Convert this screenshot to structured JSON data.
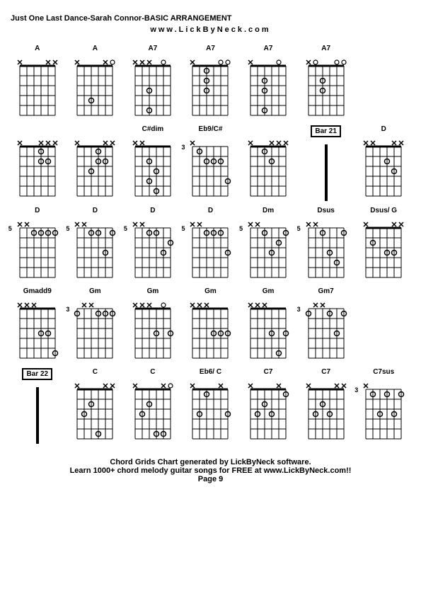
{
  "title": "Just One Last Dance-Sarah Connor-BASIC ARRANGEMENT",
  "subtitle": "www.LickByNeck.com",
  "footer_line1": "Chord Grids Chart generated by LickByNeck software.",
  "footer_line2": "Learn 1000+ chord melody guitar songs for FREE at www.LickByNeck.com!!",
  "page_label": "Page 9",
  "colors": {
    "background": "#ffffff",
    "line": "#000000",
    "text": "#000000"
  },
  "diagram": {
    "strings": 6,
    "frets": 5,
    "width": 50,
    "height": 70,
    "string_spacing": 10,
    "fret_spacing": 14,
    "dot_radius": 3.5,
    "open_radius": 3
  },
  "rows": [
    [
      {
        "label": "A",
        "fret_offset": "",
        "markers": [
          "x",
          "",
          "",
          "",
          "x",
          "x"
        ],
        "dots": []
      },
      {
        "label": "A",
        "fret_offset": "",
        "markers": [
          "x",
          "",
          "",
          "",
          "x",
          "o"
        ],
        "dots": [
          [
            4,
            2
          ]
        ]
      },
      {
        "label": "A7",
        "fret_offset": "",
        "markers": [
          "x",
          "x",
          "x",
          "",
          "o",
          ""
        ],
        "dots": [
          [
            3,
            2
          ],
          [
            5,
            2
          ]
        ]
      },
      {
        "label": "A7",
        "fret_offset": "",
        "markers": [
          "x",
          "",
          "",
          "",
          "o",
          "o"
        ],
        "dots": [
          [
            1,
            2
          ],
          [
            2,
            2
          ],
          [
            3,
            2
          ]
        ]
      },
      {
        "label": "A7",
        "fret_offset": "",
        "markers": [
          "x",
          "",
          "",
          "",
          "o",
          ""
        ],
        "dots": [
          [
            2,
            2
          ],
          [
            3,
            2
          ],
          [
            5,
            2
          ]
        ]
      },
      {
        "label": "A7",
        "fret_offset": "",
        "markers": [
          "x",
          "o",
          "",
          "",
          "o",
          "o"
        ],
        "dots": [
          [
            2,
            2
          ],
          [
            3,
            2
          ]
        ]
      },
      {
        "label": "",
        "type": "empty"
      }
    ],
    [
      {
        "label": "",
        "fret_offset": "",
        "markers": [
          "x",
          "",
          "",
          "x",
          "x",
          "x"
        ],
        "dots": [
          [
            1,
            3
          ],
          [
            2,
            4
          ],
          [
            2,
            3
          ]
        ]
      },
      {
        "label": "",
        "fret_offset": "",
        "markers": [
          "x",
          "",
          "",
          "",
          "x",
          "x"
        ],
        "dots": [
          [
            1,
            3
          ],
          [
            2,
            4
          ],
          [
            2,
            3
          ],
          [
            3,
            2
          ]
        ]
      },
      {
        "label": "C#dim",
        "fret_offset": "",
        "markers": [
          "x",
          "x",
          "",
          "",
          "",
          ""
        ],
        "dots": [
          [
            2,
            2
          ],
          [
            3,
            3
          ],
          [
            4,
            2
          ],
          [
            5,
            3
          ]
        ]
      },
      {
        "label": "Eb9/C#",
        "fret_offset": "3",
        "markers": [
          "x",
          "",
          "",
          "",
          "",
          ""
        ],
        "dots": [
          [
            1,
            1
          ],
          [
            2,
            2
          ],
          [
            2,
            3
          ],
          [
            2,
            4
          ],
          [
            4,
            5
          ]
        ]
      },
      {
        "label": "",
        "fret_offset": "",
        "markers": [
          "x",
          "",
          "",
          "x",
          "x",
          "x"
        ],
        "dots": [
          [
            1,
            2
          ],
          [
            2,
            3
          ]
        ]
      },
      {
        "label": "Bar 21",
        "type": "bar"
      },
      {
        "label": "D",
        "fret_offset": "",
        "markers": [
          "x",
          "x",
          "",
          "",
          "x",
          "x"
        ],
        "dots": [
          [
            2,
            3
          ],
          [
            3,
            4
          ]
        ]
      }
    ],
    [
      {
        "label": "D",
        "fret_offset": "5",
        "markers": [
          "x",
          "x",
          "",
          "",
          "",
          ""
        ],
        "dots": [
          [
            1,
            2
          ],
          [
            1,
            3
          ],
          [
            1,
            4
          ],
          [
            1,
            5
          ]
        ]
      },
      {
        "label": "D",
        "fret_offset": "5",
        "markers": [
          "x",
          "x",
          "",
          "",
          "",
          ""
        ],
        "dots": [
          [
            1,
            2
          ],
          [
            1,
            3
          ],
          [
            3,
            4
          ],
          [
            1,
            5
          ]
        ]
      },
      {
        "label": "D",
        "fret_offset": "5",
        "markers": [
          "x",
          "x",
          "",
          "",
          "",
          ""
        ],
        "dots": [
          [
            1,
            2
          ],
          [
            1,
            3
          ],
          [
            3,
            4
          ],
          [
            2,
            5
          ]
        ]
      },
      {
        "label": "D",
        "fret_offset": "5",
        "markers": [
          "x",
          "x",
          "",
          "",
          "",
          ""
        ],
        "dots": [
          [
            1,
            2
          ],
          [
            1,
            3
          ],
          [
            1,
            4
          ],
          [
            3,
            5
          ]
        ]
      },
      {
        "label": "Dm",
        "fret_offset": "5",
        "markers": [
          "x",
          "x",
          "",
          "",
          "",
          ""
        ],
        "dots": [
          [
            1,
            2
          ],
          [
            3,
            3
          ],
          [
            2,
            4
          ],
          [
            1,
            5
          ]
        ]
      },
      {
        "label": "Dsus",
        "fret_offset": "5",
        "markers": [
          "x",
          "x",
          "",
          "",
          "",
          ""
        ],
        "dots": [
          [
            1,
            2
          ],
          [
            3,
            3
          ],
          [
            4,
            4
          ],
          [
            1,
            5
          ]
        ]
      },
      {
        "label": "Dsus/ G",
        "fret_offset": "",
        "markers": [
          "x",
          "",
          "",
          "",
          "x",
          "x"
        ],
        "dots": [
          [
            2,
            1
          ],
          [
            3,
            3
          ],
          [
            3,
            4
          ]
        ]
      }
    ],
    [
      {
        "label": "Gmadd9",
        "fret_offset": "",
        "markers": [
          "x",
          "x",
          "x",
          "",
          "",
          ""
        ],
        "dots": [
          [
            3,
            3
          ],
          [
            3,
            4
          ],
          [
            5,
            5
          ]
        ]
      },
      {
        "label": "Gm",
        "fret_offset": "3",
        "markers": [
          "",
          "x",
          "x",
          "",
          "",
          ""
        ],
        "dots": [
          [
            1,
            0
          ],
          [
            1,
            3
          ],
          [
            1,
            4
          ],
          [
            1,
            5
          ]
        ]
      },
      {
        "label": "Gm",
        "fret_offset": "",
        "markers": [
          "x",
          "x",
          "x",
          "",
          "o",
          ""
        ],
        "dots": [
          [
            3,
            3
          ],
          [
            3,
            5
          ]
        ]
      },
      {
        "label": "Gm",
        "fret_offset": "",
        "markers": [
          "x",
          "x",
          "x",
          "",
          "",
          ""
        ],
        "dots": [
          [
            3,
            3
          ],
          [
            3,
            4
          ],
          [
            3,
            5
          ]
        ]
      },
      {
        "label": "Gm",
        "fret_offset": "",
        "markers": [
          "x",
          "x",
          "x",
          "",
          "",
          ""
        ],
        "dots": [
          [
            3,
            3
          ],
          [
            5,
            4
          ],
          [
            3,
            5
          ]
        ]
      },
      {
        "label": "Gm7",
        "fret_offset": "3",
        "markers": [
          "",
          "x",
          "x",
          "",
          "",
          ""
        ],
        "dots": [
          [
            1,
            0
          ],
          [
            1,
            3
          ],
          [
            3,
            4
          ],
          [
            1,
            5
          ]
        ]
      },
      {
        "label": "",
        "type": "empty"
      }
    ],
    [
      {
        "label": "Bar 22",
        "type": "bar"
      },
      {
        "label": "C",
        "fret_offset": "",
        "markers": [
          "x",
          "",
          "",
          "",
          "x",
          "x"
        ],
        "dots": [
          [
            3,
            1
          ],
          [
            2,
            2
          ],
          [
            5,
            3
          ]
        ]
      },
      {
        "label": "C",
        "fret_offset": "",
        "markers": [
          "x",
          "",
          "",
          "",
          "x",
          "o"
        ],
        "dots": [
          [
            3,
            1
          ],
          [
            2,
            2
          ],
          [
            5,
            3
          ],
          [
            5,
            4
          ]
        ]
      },
      {
        "label": "Eb6/ C",
        "fret_offset": "",
        "markers": [
          "x",
          "",
          "",
          "",
          "x",
          ""
        ],
        "dots": [
          [
            3,
            1
          ],
          [
            1,
            2
          ],
          [
            3,
            5
          ]
        ]
      },
      {
        "label": "C7",
        "fret_offset": "",
        "markers": [
          "x",
          "",
          "",
          "",
          "x",
          ""
        ],
        "dots": [
          [
            3,
            1
          ],
          [
            2,
            2
          ],
          [
            3,
            3
          ],
          [
            1,
            5
          ]
        ]
      },
      {
        "label": "C7",
        "fret_offset": "",
        "markers": [
          "x",
          "",
          "",
          "",
          "x",
          "x"
        ],
        "dots": [
          [
            3,
            1
          ],
          [
            2,
            2
          ],
          [
            3,
            3
          ]
        ]
      },
      {
        "label": "C7sus",
        "fret_offset": "3",
        "markers": [
          "x",
          "",
          "",
          "",
          "",
          ""
        ],
        "dots": [
          [
            1,
            1
          ],
          [
            3,
            2
          ],
          [
            1,
            3
          ],
          [
            3,
            4
          ],
          [
            1,
            5
          ]
        ]
      }
    ]
  ]
}
